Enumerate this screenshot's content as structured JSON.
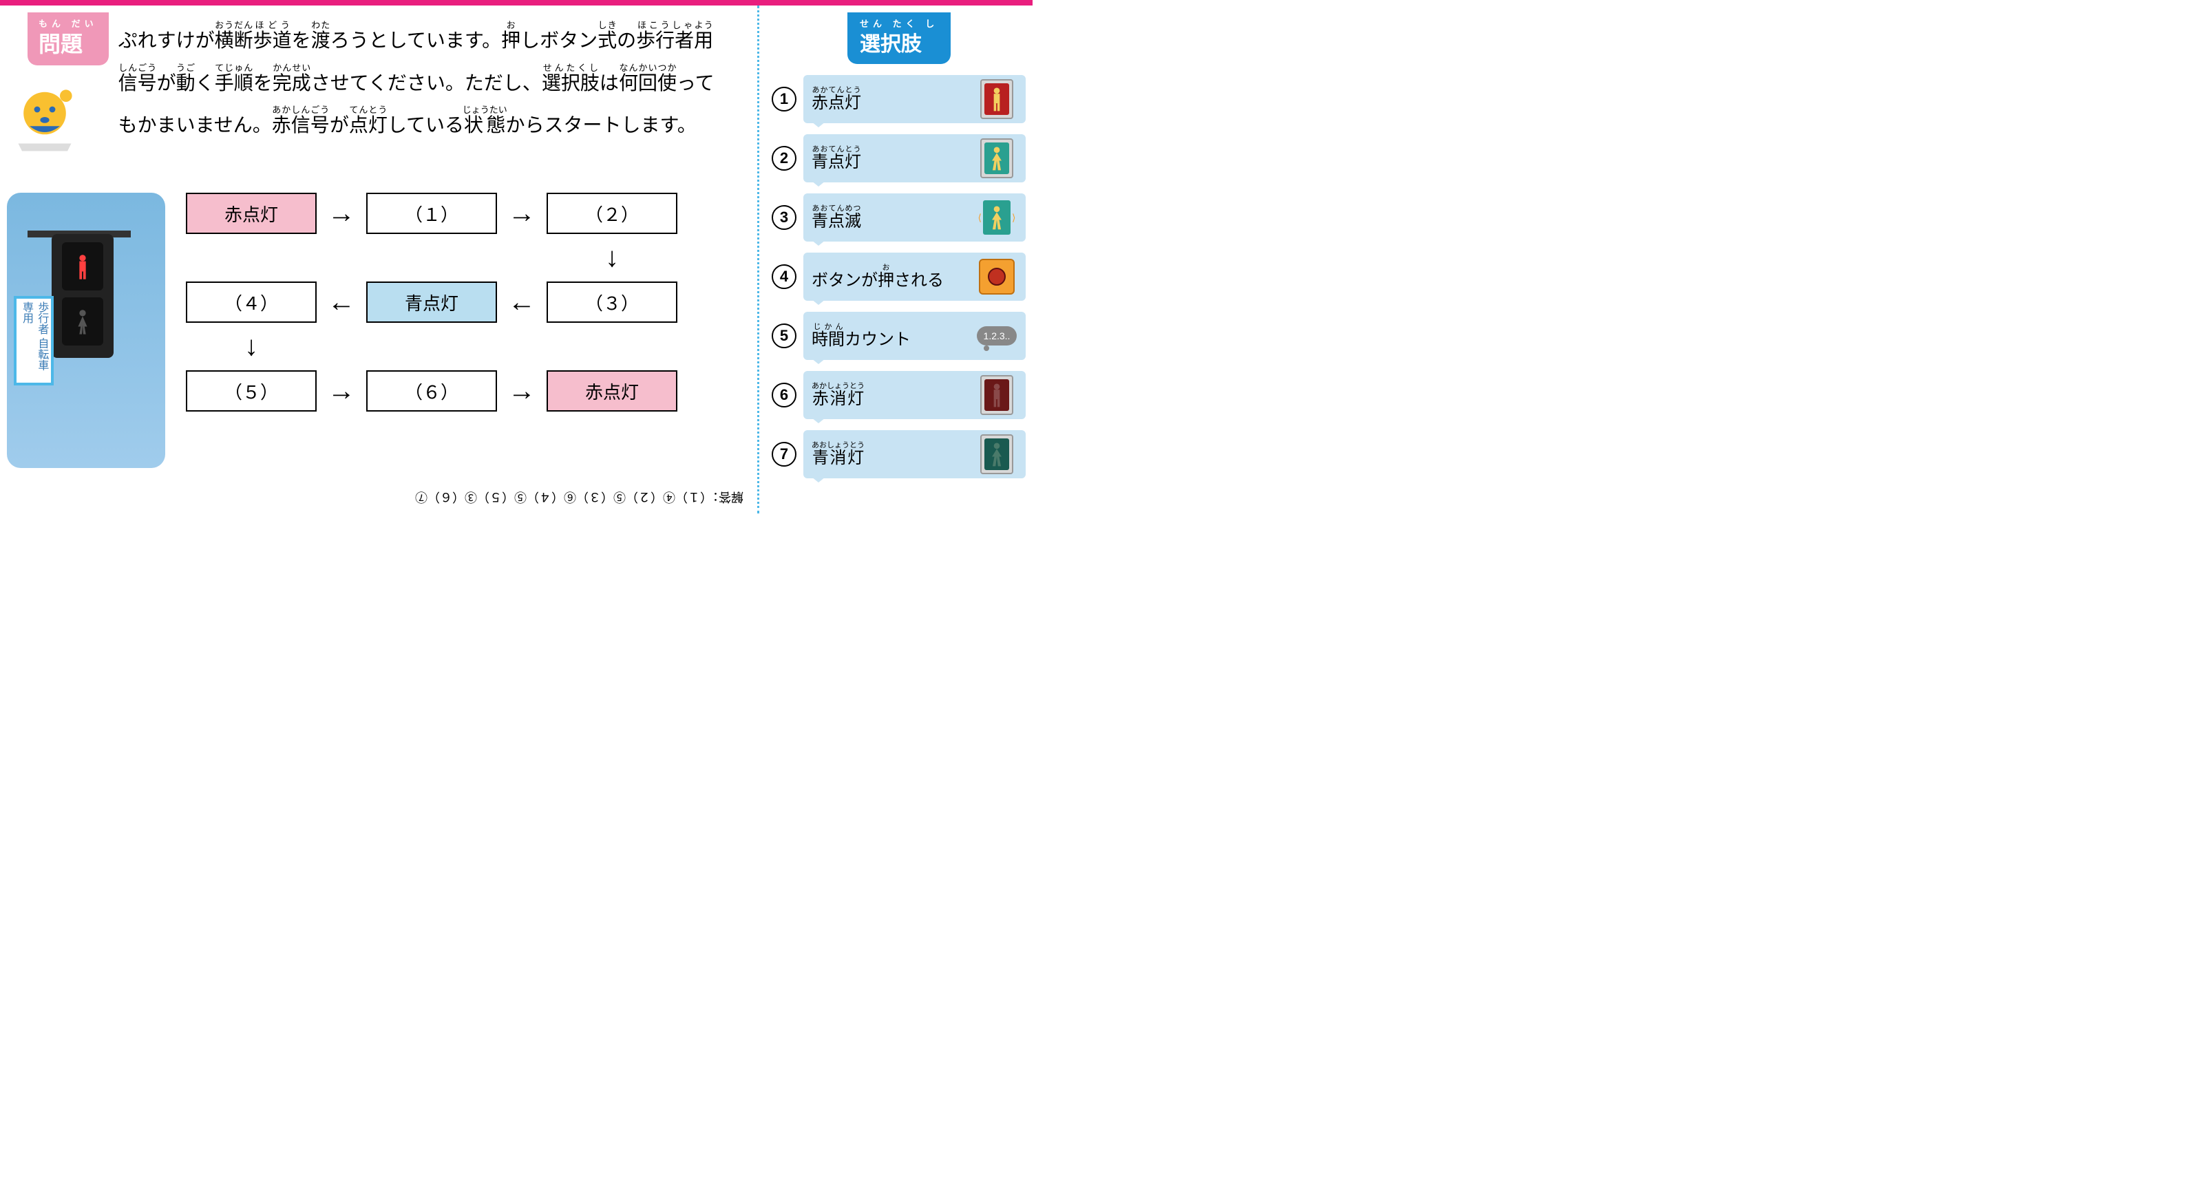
{
  "topbar_color": "#e91e7e",
  "badge": {
    "furi": "もん だい",
    "text": "問題",
    "bg": "#f098b8"
  },
  "question_html": "ぷれすけが<ruby>横断<rt>おうだん</rt></ruby><ruby>歩道<rt>ほどう</rt></ruby>を<ruby>渡<rt>わた</rt></ruby>ろうとしています。<ruby>押<rt>お</rt></ruby>しボタン<ruby>式<rt>しき</rt></ruby>の<ruby>歩行者<rt>ほこうしゃ</rt></ruby><ruby>用<rt>よう</rt></ruby><br><ruby>信号<rt>しんごう</rt></ruby>が<ruby>動<rt>うご</rt></ruby>く<ruby>手順<rt>てじゅん</rt></ruby>を<ruby>完成<rt>かんせい</rt></ruby>させてください。ただし、<ruby>選択肢<rt>せんたくし</rt></ruby>は<ruby>何回<rt>なんかい</rt></ruby><ruby>使<rt>つか</rt></ruby>って<br>もかまいません。<ruby>赤信号<rt>あかしんごう</rt></ruby>が<ruby>点灯<rt>てんとう</rt></ruby>している<ruby>状態<rt>じょうたい</rt></ruby>からスタートします。",
  "photo_sign": "歩行者\n自転車\n専用",
  "flow": {
    "start": {
      "label": "赤点灯",
      "fill": "pink"
    },
    "b1": "（１）",
    "b2": "（２）",
    "b3": "（３）",
    "mid": {
      "label": "青点灯",
      "fill": "blue"
    },
    "b4": "（４）",
    "b5": "（５）",
    "b6": "（６）",
    "end": {
      "label": "赤点灯",
      "fill": "pink"
    },
    "colors": {
      "pink": "#f6becd",
      "blue": "#b9def0",
      "border": "#000000"
    }
  },
  "sidebar_badge": {
    "furi": "せん たく し",
    "text": "選択肢",
    "bg": "#1a8fd4"
  },
  "options": [
    {
      "num": "1",
      "label_html": "<ruby>赤点灯<rt>あかてんとう</rt></ruby>",
      "icon": "signal",
      "signal_bg": "#b82020",
      "ped_color": "#f2d060"
    },
    {
      "num": "2",
      "label_html": "<ruby>青点灯<rt>あおてんとう</rt></ruby>",
      "icon": "signal",
      "signal_bg": "#2aa090",
      "ped_color": "#f2d060"
    },
    {
      "num": "3",
      "label_html": "<ruby>青点滅<rt>あおてんめつ</rt></ruby>",
      "icon": "blink",
      "signal_bg": "#2aa090",
      "ped_color": "#f2d060"
    },
    {
      "num": "4",
      "label_html": "ボタンが<ruby>押<rt>お</rt></ruby>される",
      "icon": "button"
    },
    {
      "num": "5",
      "label_html": "<ruby>時間<rt>じかん</rt></ruby>カウント",
      "icon": "thought",
      "thought_text": "1.2.3.."
    },
    {
      "num": "6",
      "label_html": "<ruby>赤消灯<rt>あかしょうとう</rt></ruby>",
      "icon": "signal",
      "signal_bg": "#6a1818",
      "ped_color": "#8a4a4a"
    },
    {
      "num": "7",
      "label_html": "<ruby>青消灯<rt>あおしょうとう</rt></ruby>",
      "icon": "signal",
      "signal_bg": "#1a5a50",
      "ped_color": "#4a7a6a"
    }
  ],
  "answer": "解答：（１）④（２）⑤（３）⑥（４）⑤（５）③（６）⑦",
  "option_bg": "#c8e3f3",
  "sidebar_border": "#4db8e8"
}
